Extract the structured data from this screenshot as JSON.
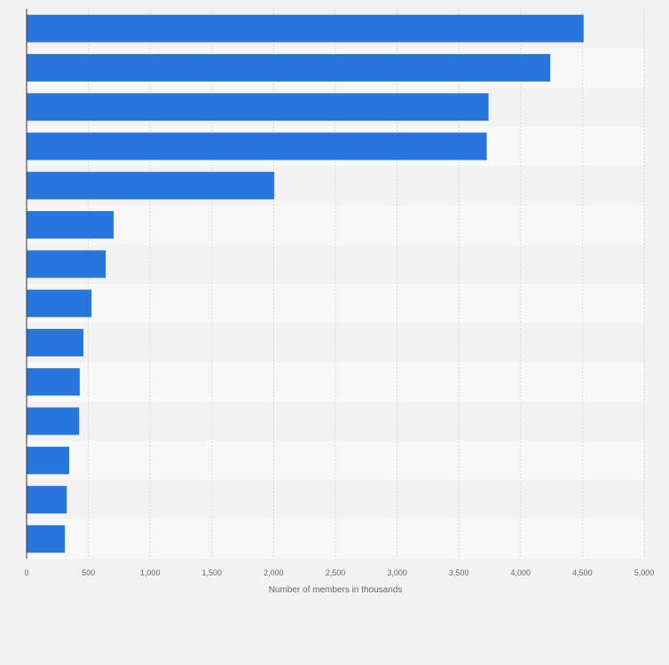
{
  "chart_data": {
    "type": "bar",
    "orientation": "horizontal",
    "categories": [
      "",
      "",
      "",
      "",
      "",
      "",
      "",
      "",
      "",
      "",
      "",
      "",
      "",
      ""
    ],
    "values": [
      4510,
      4240,
      3740,
      3725,
      2005,
      705,
      640,
      525,
      460,
      430,
      425,
      345,
      325,
      310
    ],
    "title": "",
    "xlabel": "Number of members in thousands",
    "ylabel": "",
    "xlim": [
      0,
      5000
    ],
    "xticks": [
      0,
      500,
      1000,
      1500,
      2000,
      2500,
      3000,
      3500,
      4000,
      4500,
      5000
    ],
    "tick_labels": [
      "0",
      "500",
      "1,000",
      "1,500",
      "2,000",
      "2,500",
      "3,000",
      "3,500",
      "4,000",
      "4,500",
      "5,000"
    ],
    "grid": true,
    "legend": "none",
    "bar_color": "#2876dd",
    "band_colors": [
      "#f2f2f2",
      "#f8f8f8"
    ]
  }
}
